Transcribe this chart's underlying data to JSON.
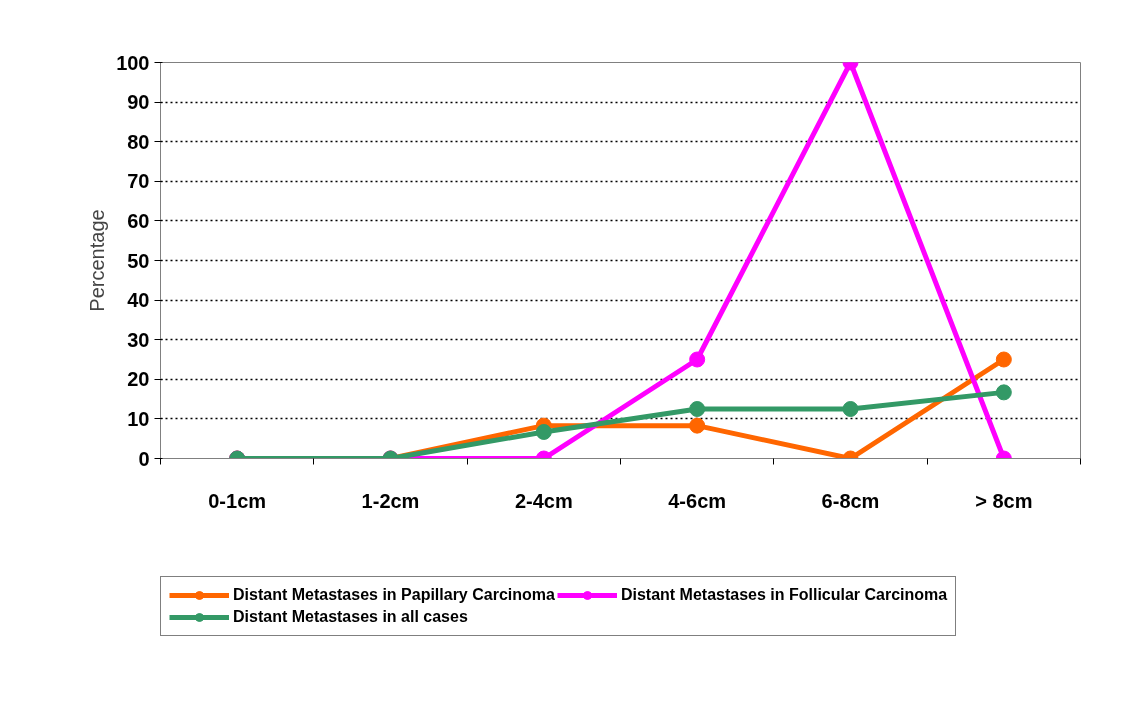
{
  "chart_data": {
    "type": "line",
    "ylabel": "Percentage",
    "categories": [
      "0-1cm",
      "1-2cm",
      "2-4cm",
      "4-6cm",
      "6-8cm",
      "> 8cm"
    ],
    "series": [
      {
        "name": "Distant Metastases in Papillary Carcinoma",
        "color": "#ff6600",
        "values": [
          0,
          0,
          8.3,
          8.3,
          0,
          25
        ]
      },
      {
        "name": "Distant Metastases in Follicular Carcinoma",
        "color": "#ff00ff",
        "values": [
          0,
          0,
          0,
          25,
          100,
          0
        ]
      },
      {
        "name": "Distant Metastases in all cases",
        "color": "#339966",
        "values": [
          0,
          0,
          6.7,
          12.5,
          12.5,
          16.7
        ]
      }
    ],
    "ylim": [
      0,
      100
    ],
    "yticks": [
      0,
      10,
      20,
      30,
      40,
      50,
      60,
      70,
      80,
      90,
      100
    ],
    "grid": "y",
    "legend": "bottom",
    "marker": "circle",
    "line_style": "solid"
  }
}
